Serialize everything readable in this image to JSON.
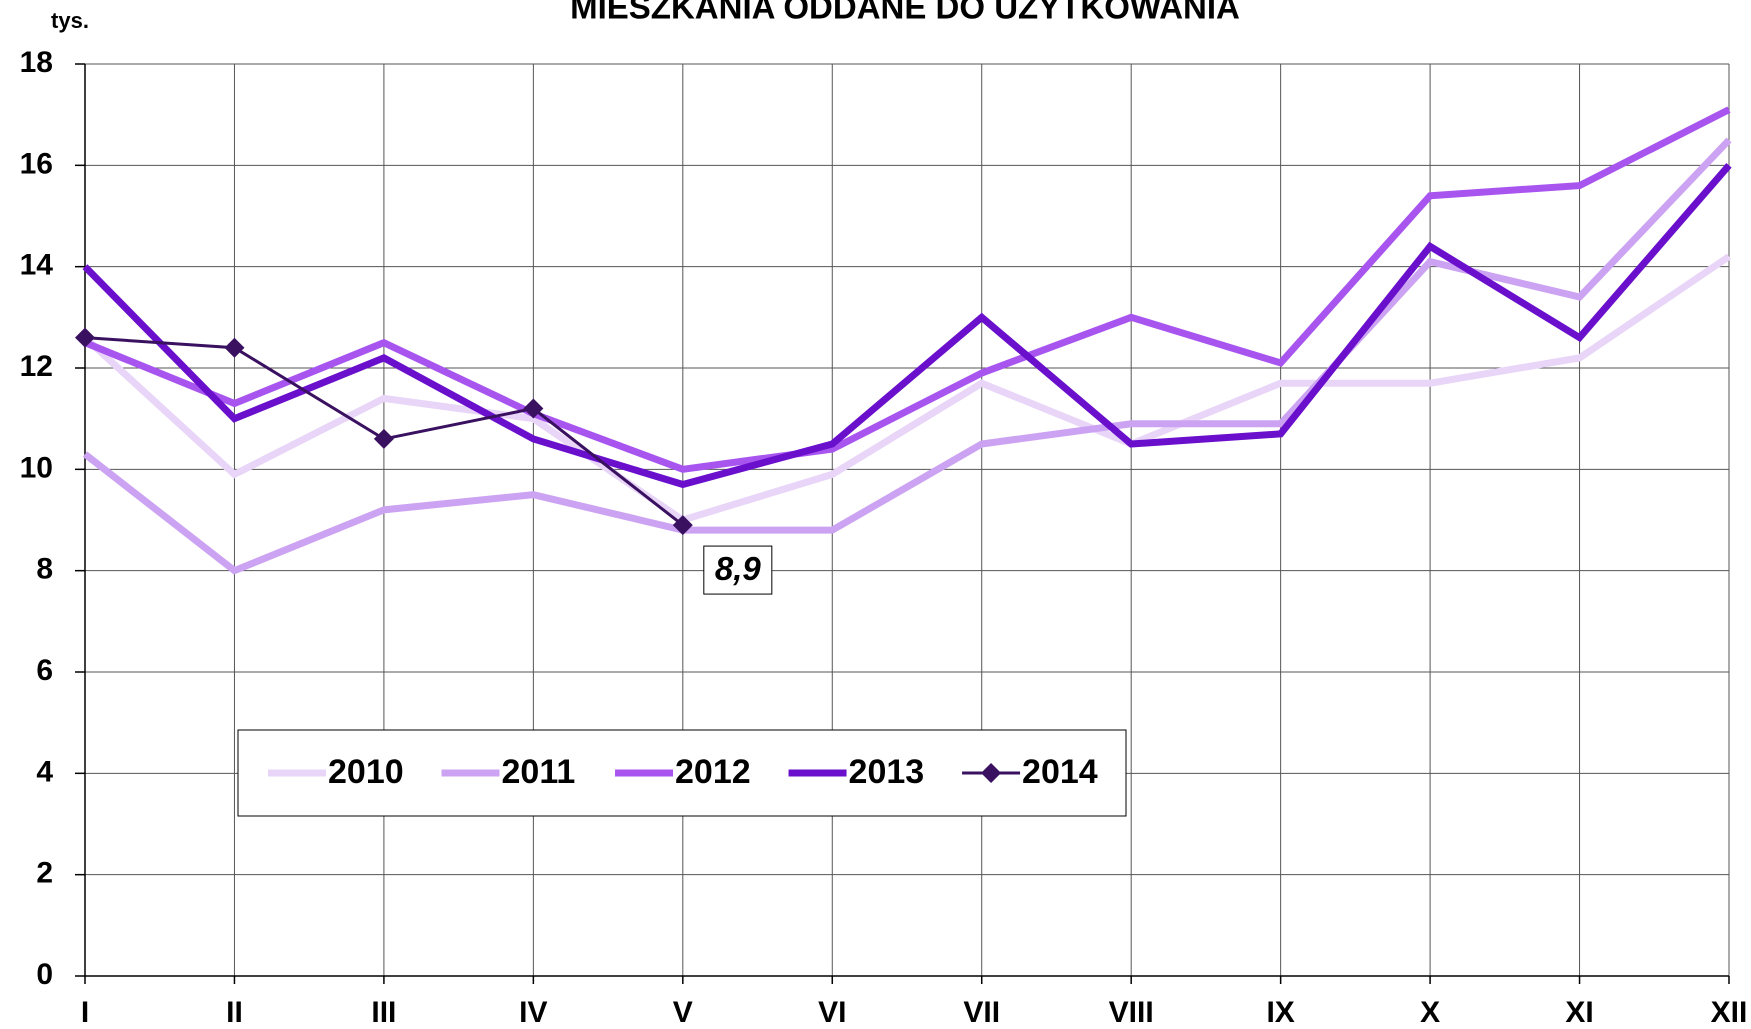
{
  "chart_data": {
    "type": "line",
    "title": "MIESZKANIA ODDANE DO UŻYTKOWANIA",
    "y_label": "tys.",
    "categories": [
      "I",
      "II",
      "III",
      "IV",
      "V",
      "VI",
      "VII",
      "VIII",
      "IX",
      "X",
      "XI",
      "XII"
    ],
    "series": [
      {
        "name": "2010",
        "color": "#e8d5f8",
        "values": [
          12.6,
          9.9,
          11.4,
          11.0,
          9.0,
          9.9,
          11.7,
          10.5,
          11.7,
          11.7,
          12.2,
          14.2
        ]
      },
      {
        "name": "2011",
        "color": "#cca3f2",
        "values": [
          10.3,
          8.0,
          9.2,
          9.5,
          8.8,
          8.8,
          10.5,
          10.9,
          10.9,
          14.1,
          13.4,
          16.5
        ]
      },
      {
        "name": "2012",
        "color": "#a855f0",
        "values": [
          12.5,
          11.3,
          12.5,
          11.1,
          10.0,
          10.4,
          11.9,
          13.0,
          12.1,
          15.4,
          15.6,
          17.1
        ]
      },
      {
        "name": "2013",
        "color": "#6a0fcc",
        "values": [
          14.0,
          11.0,
          12.2,
          10.6,
          9.7,
          10.5,
          13.0,
          10.5,
          10.7,
          14.4,
          12.6,
          16.0
        ]
      },
      {
        "name": "2014",
        "color": "#3a1060",
        "marker": "diamond",
        "values": [
          12.6,
          12.4,
          10.6,
          11.2,
          8.9,
          null,
          null,
          null,
          null,
          null,
          null,
          null
        ],
        "value_labels": [
          null,
          null,
          null,
          null,
          "8,9",
          null,
          null,
          null,
          null,
          null,
          null,
          null
        ]
      }
    ],
    "ylim": [
      0,
      18
    ],
    "yticks": [
      0,
      2,
      4,
      6,
      8,
      10,
      12,
      14,
      16,
      18
    ],
    "grid": true,
    "legend": "lower-left"
  }
}
